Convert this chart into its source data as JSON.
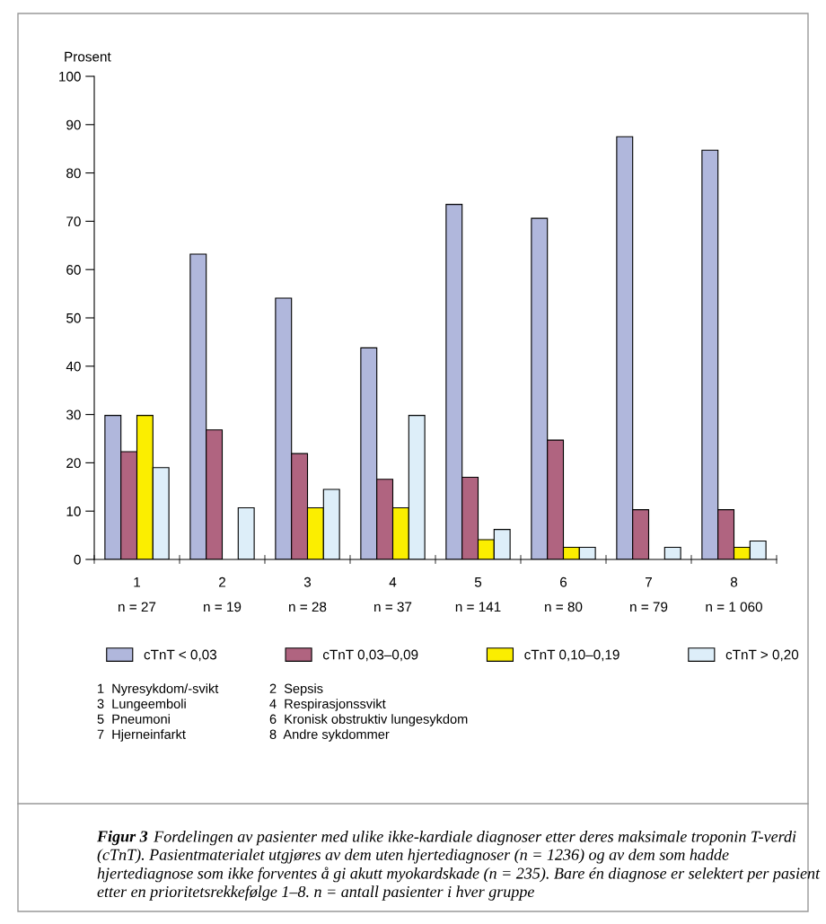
{
  "chart_data": {
    "type": "bar",
    "ylabel": "Prosent",
    "categories": [
      "1\nn = 27",
      "2\nn = 19",
      "3\nn = 28",
      "4\nn = 37",
      "5\nn = 141",
      "6\nn = 80",
      "7\nn = 79",
      "8\nn = 1 060"
    ],
    "series": [
      {
        "name": "cTnT < 0,03",
        "color": "#b0b7dc",
        "values": [
          29.8,
          63.2,
          54.1,
          43.8,
          73.5,
          70.6,
          87.5,
          84.7
        ]
      },
      {
        "name": "cTnT 0,03–0,09",
        "color": "#b06480",
        "values": [
          22.3,
          26.8,
          21.9,
          16.6,
          17.0,
          24.7,
          10.3,
          10.3
        ]
      },
      {
        "name": "cTnT 0,10–0,19",
        "color": "#fbee00",
        "values": [
          29.8,
          null,
          10.7,
          10.7,
          4.1,
          2.5,
          null,
          2.5
        ]
      },
      {
        "name": "cTnT > 0,20",
        "color": "#ddeef9",
        "values": [
          19.0,
          10.7,
          14.5,
          29.8,
          6.2,
          2.5,
          2.5,
          3.8
        ]
      }
    ],
    "ylim": [
      0,
      100
    ],
    "yticks": [
      0,
      10,
      20,
      30,
      40,
      50,
      60,
      70,
      80,
      90,
      100
    ],
    "grid": false,
    "legend": "bottom",
    "annotations": [
      "1  Nyresykdom/-svikt",
      "2  Sepsis",
      "3  Lungeemboli",
      "4  Respirasjonssvikt",
      "5  Pneumoni",
      "6  Kronisk obstruktiv lungesykdom",
      "7  Hjerneinfarkt",
      "8  Andre sykdommer",
      "Figur 3",
      "Fordelingen av pasienter med ulike ikke-kardiale diagnoser etter deres maksimale troponin T-verdi (cTnT). Pasientmaterialet utgjøres av dem uten hjertediagnoser (n = 1236) og av dem som hadde hjertediagnose som ikke forventes å gi akutt myokardskade (n = 235). Bare én diagnose er selektert per pasient etter en prioritetsrekkefølge 1–8. n = antall pasienter i hver gruppe"
    ]
  }
}
